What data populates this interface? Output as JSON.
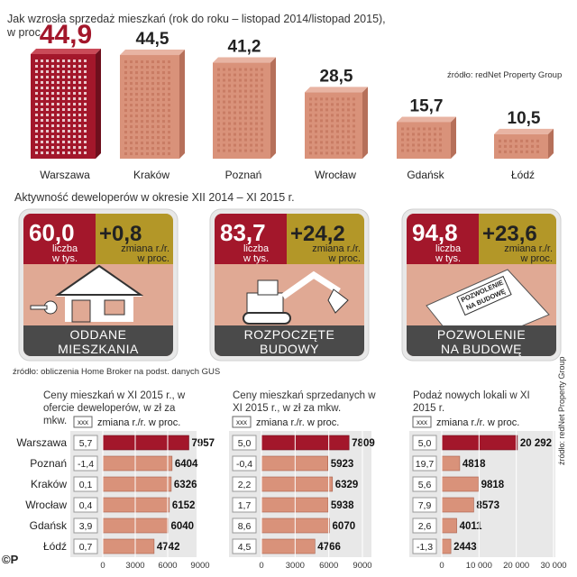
{
  "top": {
    "title_line1": "Jak wzrosła sprzedaż mieszkań  (rok do roku – listopad 2014/listopad 2015),",
    "title_line2": "w proc.",
    "source": "źródło: redNet Property Group"
  },
  "developers": {
    "title": "Aktywność deweloperów w okresie XII 2014 – XI 2015 r.",
    "source": "źródło: obliczenia Home Broker  na podst. danych GUS",
    "cards": [
      {
        "value": "60,0",
        "unit1": "liczba",
        "unit2": "w tys.",
        "change": "+0,8",
        "clabel1": "zmiana r./r.",
        "clabel2": "w proc.",
        "caption1": "ODDANE",
        "caption2": "MIESZKANIA",
        "icon": "house-key-icon"
      },
      {
        "value": "83,7",
        "unit1": "liczba",
        "unit2": "w tys.",
        "change": "+24,2",
        "clabel1": "zmiana r./r.",
        "clabel2": "w proc.",
        "caption1": "ROZPOCZĘTE",
        "caption2": "BUDOWY",
        "icon": "excavator-icon"
      },
      {
        "value": "94,8",
        "unit1": "liczba",
        "unit2": "w tys.",
        "change": "+23,6",
        "clabel1": "zmiana r./r.",
        "clabel2": "w proc.",
        "caption1": "POZWOLENIE",
        "caption2": "NA BUDOWĘ",
        "icon": "permit-document-icon",
        "doc_text1": "POZWOLENIE",
        "doc_text2": "NA BUDOWĘ"
      }
    ]
  },
  "side_source": "źródło: redNet Property Group",
  "copyright": "©P",
  "legend": {
    "box": "xxx",
    "text": "zmiana r./r. w proc."
  },
  "colors": {
    "accent_red": "#a3172b",
    "salmon": "#d9927a",
    "mustard": "#b39728",
    "card_bg": "#e0a994",
    "dark_bar": "#4a4a4a",
    "panel_bg": "#e8e8e8"
  },
  "chart_data": [
    {
      "type": "bar",
      "title": "Jak wzrosła sprzedaż mieszkań  (rok do roku – listopad 2014/listopad 2015), w proc.",
      "categories": [
        "Warszawa",
        "Kraków",
        "Poznań",
        "Wrocław",
        "Gdańsk",
        "Łódź"
      ],
      "values": [
        44.9,
        44.5,
        41.2,
        28.5,
        15.7,
        10.5
      ],
      "labels": [
        "44,9",
        "44,5",
        "41,2",
        "28,5",
        "15,7",
        "10,5"
      ]
    },
    {
      "type": "bar",
      "orientation": "horizontal",
      "title": "Ceny mieszkań w XI 2015 r., w ofercie deweloperów, w zł za mkw.",
      "categories": [
        "Warszawa",
        "Poznań",
        "Kraków",
        "Wrocław",
        "Gdańsk",
        "Łódź"
      ],
      "values": [
        7957,
        6404,
        6326,
        6152,
        6040,
        4742
      ],
      "changes": [
        "5,7",
        "-1,4",
        "0,1",
        "0,4",
        "3,9",
        "0,7"
      ],
      "xlim": [
        0,
        9000
      ],
      "ticks": [
        "0",
        "3000",
        "6000",
        "9000"
      ]
    },
    {
      "type": "bar",
      "orientation": "horizontal",
      "title": "Ceny mieszkań sprzedanych w XI 2015 r., w zł za mkw.",
      "categories": [
        "Warszawa",
        "Poznań",
        "Kraków",
        "Wrocław",
        "Gdańsk",
        "Łódź"
      ],
      "values": [
        7809,
        5923,
        6329,
        5938,
        6070,
        4766
      ],
      "changes": [
        "5,0",
        "-0,4",
        "2,2",
        "1,7",
        "8,6",
        "4,5"
      ],
      "xlim": [
        0,
        9000
      ],
      "ticks": [
        "0",
        "3000",
        "6000",
        "9000"
      ]
    },
    {
      "type": "bar",
      "orientation": "horizontal",
      "title": "Podaż nowych lokali w XI 2015 r.",
      "categories": [
        "Warszawa",
        "Poznań",
        "Kraków",
        "Wrocław",
        "Gdańsk",
        "Łódź"
      ],
      "values": [
        20292,
        4818,
        9818,
        8573,
        4011,
        2443
      ],
      "value_labels": [
        "20 292",
        "4818",
        "9818",
        "8573",
        "4011",
        "2443"
      ],
      "changes": [
        "5,0",
        "19,7",
        "5,6",
        "7,9",
        "2,6",
        "-1,3"
      ],
      "xlim": [
        0,
        30000
      ],
      "ticks": [
        "0",
        "10 000",
        "20 000",
        "30 000"
      ]
    }
  ]
}
